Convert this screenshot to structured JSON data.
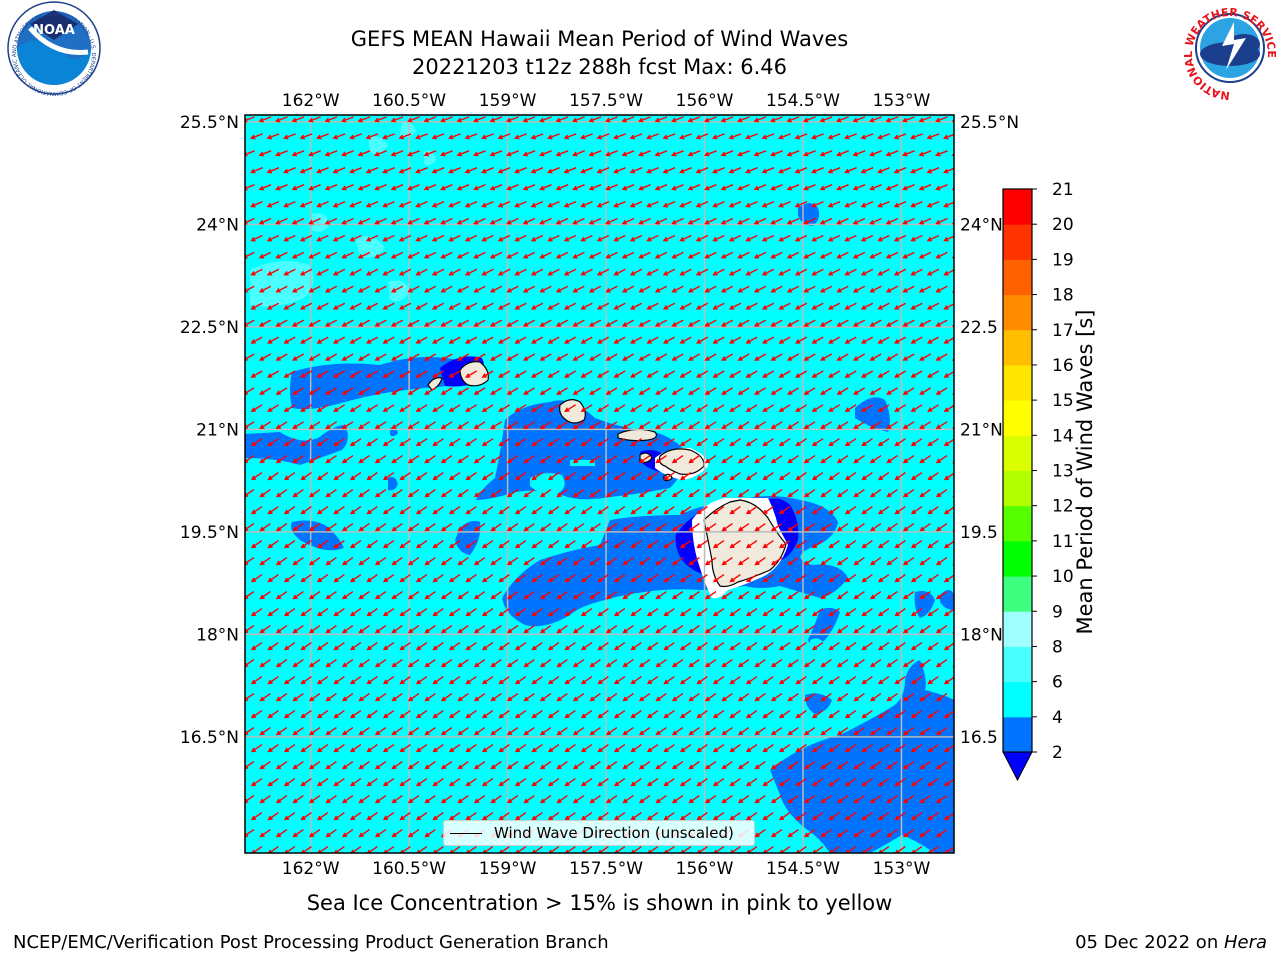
{
  "title": {
    "line1": "GEFS MEAN Hawaii Mean Period of Wind Waves",
    "line2": "20221203 t12z 288h fcst   Max: 6.46"
  },
  "subtitle": "Sea Ice Concentration > 15% is shown in pink to yellow",
  "footer": {
    "left": "NCEP/EMC/Verification Post Processing Product Generation Branch",
    "right_prefix": "05 Dec 2022 on ",
    "right_italic": "Hera"
  },
  "logos": {
    "noaa": {
      "center_text": "NOAA",
      "ring_text": "NATIONAL OCEANIC AND ATMOSPHERIC ADMINISTRATION · U.S. DEPARTMENT OF COMMERCE"
    },
    "nws": {
      "ring_text": "NATIONAL WEATHER SERVICE"
    }
  },
  "map": {
    "lon_range": [
      -163.0,
      -152.2
    ],
    "lat_range": [
      14.8,
      25.6
    ],
    "lon_ticks": [
      "162°W",
      "160.5°W",
      "159°W",
      "157.5°W",
      "156°W",
      "154.5°W",
      "153°W"
    ],
    "lat_ticks": [
      "25.5°N",
      "24°N",
      "22.5°N",
      "21°N",
      "19.5°N",
      "18°N",
      "16.5°N"
    ],
    "lat_ticks_right": [
      "25.5°N",
      "24°N",
      "22.5",
      "21°N",
      "19.5",
      "18°N",
      "16.5"
    ],
    "grid": true,
    "legend": "Wind Wave Direction (unscaled)",
    "legend_position": "bottom-center",
    "background_color": "#00ffff",
    "land_color": "#efeadb",
    "arrow_color": "#ff0000",
    "gridline_color": "#bbbbbb"
  },
  "colorbar": {
    "label": "Mean Period of Wind Waves [s]",
    "tick_labels": [
      "2",
      "4",
      "6",
      "8",
      "9",
      "10",
      "11",
      "12",
      "13",
      "14",
      "15",
      "16",
      "17",
      "18",
      "19",
      "20",
      "21"
    ],
    "colors": [
      "#0073ff",
      "#00ffff",
      "#49ffff",
      "#a0ffff",
      "#3fff80",
      "#00ff00",
      "#55ff00",
      "#b2ff00",
      "#d9ff00",
      "#ffff00",
      "#ffe600",
      "#ffbf00",
      "#ff8c00",
      "#ff6000",
      "#ff3300",
      "#ff0000"
    ],
    "under_color": "#0000ff",
    "extend": "min"
  }
}
